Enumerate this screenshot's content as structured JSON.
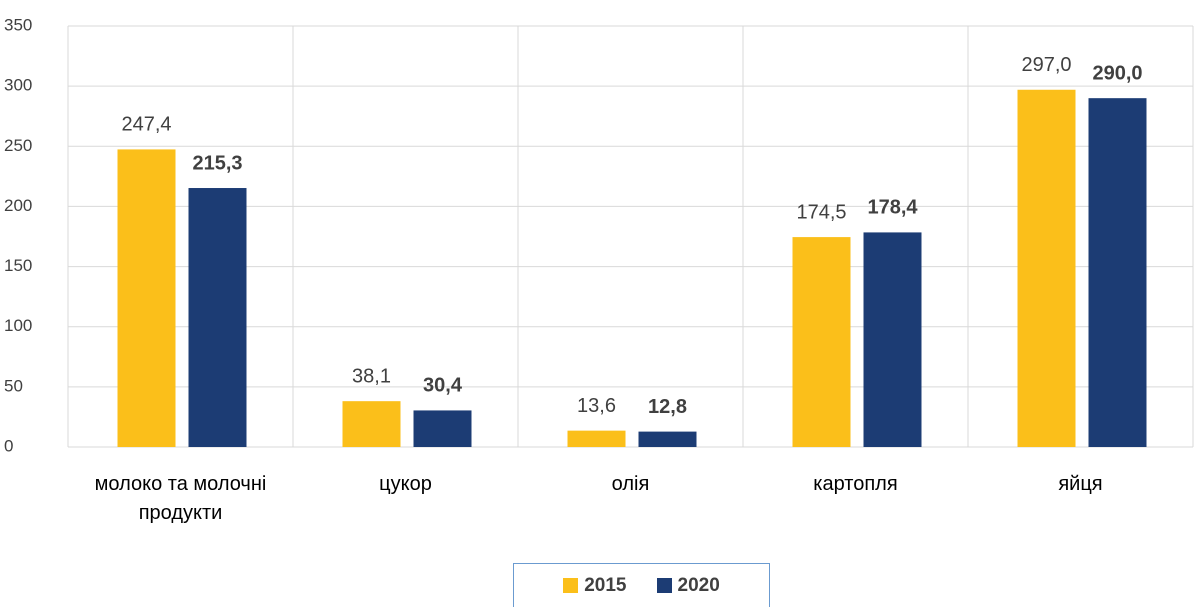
{
  "chart_data": {
    "type": "bar",
    "categories": [
      "молоко та молочні продукти",
      "цукор",
      "олія",
      "картопля",
      "яйця"
    ],
    "series": [
      {
        "name": "2015",
        "color": "#fbbf1a",
        "values": [
          247.4,
          38.1,
          13.6,
          174.5,
          297.0
        ],
        "value_labels": [
          "247,4",
          "38,1",
          "13,6",
          "174,5",
          "297,0"
        ]
      },
      {
        "name": "2020",
        "color": "#1c3c74",
        "values": [
          215.3,
          30.4,
          12.8,
          178.4,
          290.0
        ],
        "value_labels": [
          "215,3",
          "30,4",
          "12,8",
          "178,4",
          "290,0"
        ]
      }
    ],
    "ylim": [
      0,
      350
    ],
    "yticks": [
      0,
      50,
      100,
      150,
      200,
      250,
      300,
      350
    ],
    "grid": true,
    "legend": "bottom"
  }
}
